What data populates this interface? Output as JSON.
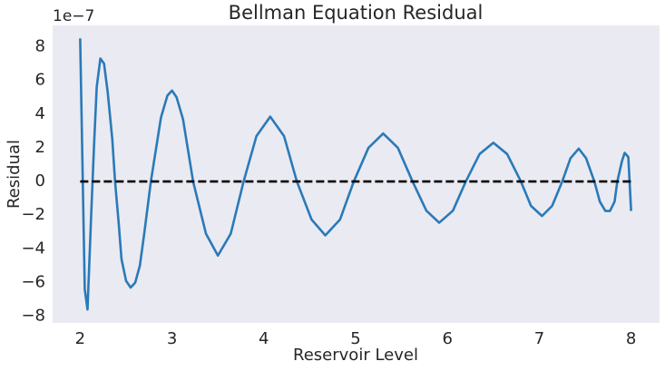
{
  "chart_data": {
    "type": "line",
    "title": "Bellman Equation Residual",
    "xlabel": "Reservoir Level",
    "ylabel": "Residual",
    "offset_label": "1e−7",
    "xlim": [
      1.7,
      8.31
    ],
    "ylim": [
      -8.4,
      9.27
    ],
    "xticks": [
      2,
      3,
      4,
      5,
      6,
      7,
      8
    ],
    "yticks": [
      {
        "value": -8,
        "label": "−8"
      },
      {
        "value": -6,
        "label": "−6"
      },
      {
        "value": -4,
        "label": "−4"
      },
      {
        "value": -2,
        "label": "−2"
      },
      0,
      2,
      4,
      6,
      8
    ],
    "grid": false,
    "background": "#eaeaf2",
    "series": [
      {
        "color": "#2a7ab7",
        "dash": false,
        "x": [
          2.0,
          2.05,
          2.08,
          2.12,
          2.15,
          2.18,
          2.22,
          2.26,
          2.3,
          2.35,
          2.38,
          2.42,
          2.45,
          2.5,
          2.55,
          2.6,
          2.65,
          2.7,
          2.77,
          2.88,
          2.95,
          3.0,
          3.05,
          3.12,
          3.23,
          3.37,
          3.5,
          3.64,
          3.78,
          3.92,
          4.07,
          4.22,
          4.36,
          4.52,
          4.67,
          4.83,
          4.98,
          5.14,
          5.3,
          5.46,
          5.62,
          5.77,
          5.91,
          6.06,
          6.2,
          6.35,
          6.5,
          6.65,
          6.8,
          6.91,
          7.03,
          7.14,
          7.25,
          7.34,
          7.43,
          7.51,
          7.6,
          7.66,
          7.72,
          7.77,
          7.82,
          7.85,
          7.9,
          7.93,
          7.97,
          8.0
        ],
        "values": [
          8.5,
          -6.4,
          -7.6,
          -2,
          2,
          5.6,
          7.3,
          7.0,
          5.3,
          2.5,
          0,
          -2.5,
          -4.6,
          -5.9,
          -6.3,
          -6.0,
          -5,
          -3,
          0,
          3.8,
          5.1,
          5.4,
          5.0,
          3.7,
          0,
          -3.1,
          -4.4,
          -3.1,
          0,
          2.7,
          3.85,
          2.7,
          0,
          -2.26,
          -3.2,
          -2.26,
          0,
          2.0,
          2.85,
          2.0,
          0,
          -1.73,
          -2.45,
          -1.73,
          0,
          1.63,
          2.3,
          1.63,
          0,
          -1.45,
          -2.05,
          -1.45,
          0,
          1.38,
          1.95,
          1.38,
          0,
          -1.2,
          -1.75,
          -1.75,
          -1.2,
          0,
          1.2,
          1.7,
          1.45,
          -1.75
        ]
      },
      {
        "color": "#000000",
        "dash": true,
        "x": [
          2,
          8
        ],
        "values": [
          0,
          0
        ]
      }
    ]
  }
}
